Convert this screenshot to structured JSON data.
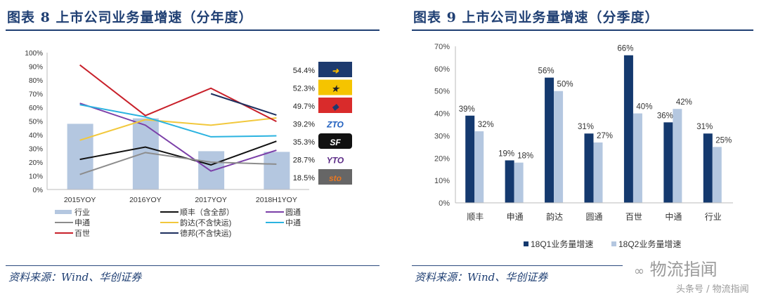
{
  "left": {
    "title": "图表 8   上市公司业务量增速（分年度）",
    "source": "资料来源：Wind、华创证券",
    "latest_labels": [
      {
        "value": "54.4%",
        "logo": "Deppon",
        "colors": [
          "#1d3a6e",
          "#f5b800"
        ]
      },
      {
        "value": "52.3%",
        "logo": "Yunda",
        "colors": [
          "#f5c400",
          "#222222"
        ]
      },
      {
        "value": "49.7%",
        "logo": "Best",
        "colors": [
          "#d92b2b",
          "#1d3a6e"
        ]
      },
      {
        "value": "39.2%",
        "logo": "ZTO",
        "colors": [
          "#1f5fbf",
          "#1f5fbf"
        ]
      },
      {
        "value": "35.3%",
        "logo": "SF",
        "colors": [
          "#111111",
          "#ffffff"
        ]
      },
      {
        "value": "28.7%",
        "logo": "YTO",
        "colors": [
          "#5b2a86",
          "#5b2a86"
        ]
      },
      {
        "value": "18.5%",
        "logo": "sto",
        "colors": [
          "#666666",
          "#e87722"
        ]
      }
    ]
  },
  "right": {
    "title": "图表 9   上市公司业务量增速（分季度）",
    "source": "资料来源：Wind、华创证券"
  },
  "watermark": {
    "brand": "物流指闻",
    "byline": "头条号 / 物流指闻"
  },
  "chart_data": [
    {
      "type": "bar+line",
      "title": "上市公司业务量增速（分年度）",
      "categories": [
        "2015YOY",
        "2016YOY",
        "2017YOY",
        "2018H1YOY"
      ],
      "ylim": [
        0,
        100
      ],
      "yticks": [
        "0%",
        "10%",
        "20%",
        "30%",
        "40%",
        "50%",
        "60%",
        "70%",
        "80%",
        "90%",
        "100%"
      ],
      "bar_series": {
        "name": "行业",
        "color": "#b4c7e0",
        "values": [
          48,
          52,
          28,
          27.5
        ]
      },
      "line_series": [
        {
          "name": "顺丰（含全部）",
          "color": "#111111",
          "values": [
            22,
            31,
            18,
            35.3
          ]
        },
        {
          "name": "圆通",
          "color": "#7b3fa8",
          "values": [
            63,
            47,
            13.5,
            28.7
          ]
        },
        {
          "name": "申通",
          "color": "#8c8c8c",
          "values": [
            11,
            27,
            20,
            18.5
          ]
        },
        {
          "name": "韵达(不含快运)",
          "color": "#f2c83c",
          "values": [
            36,
            51,
            47,
            52.3
          ]
        },
        {
          "name": "中通",
          "color": "#2bb3e0",
          "values": [
            62,
            53,
            38.5,
            39.2
          ]
        },
        {
          "name": "百世",
          "color": "#c8202a",
          "values": [
            91,
            54,
            74,
            49.7
          ]
        },
        {
          "name": "德邦(不含快运)",
          "color": "#1d2f5e",
          "values": [
            null,
            null,
            70,
            54.4
          ]
        }
      ],
      "legend": "bottom"
    },
    {
      "type": "bar",
      "title": "上市公司业务量增速（分季度）",
      "categories": [
        "顺丰",
        "申通",
        "韵达",
        "圆通",
        "百世",
        "中通",
        "行业"
      ],
      "ylim": [
        0,
        70
      ],
      "yticks": [
        "0%",
        "10%",
        "20%",
        "30%",
        "40%",
        "50%",
        "60%",
        "70%"
      ],
      "series": [
        {
          "name": "18Q1业务量增速",
          "color": "#14396e",
          "values": [
            39,
            19,
            56,
            31,
            66,
            36,
            31
          ],
          "labels": [
            "39%",
            "19%",
            "56%",
            "31%",
            "66%",
            "36%",
            "31%"
          ]
        },
        {
          "name": "18Q2业务量增速",
          "color": "#b4c7e0",
          "values": [
            32,
            18,
            50,
            27,
            40,
            42,
            25
          ],
          "labels": [
            "32%",
            "18%",
            "50%",
            "27%",
            "40%",
            "42%",
            "25%"
          ]
        }
      ],
      "legend": "bottom"
    }
  ]
}
